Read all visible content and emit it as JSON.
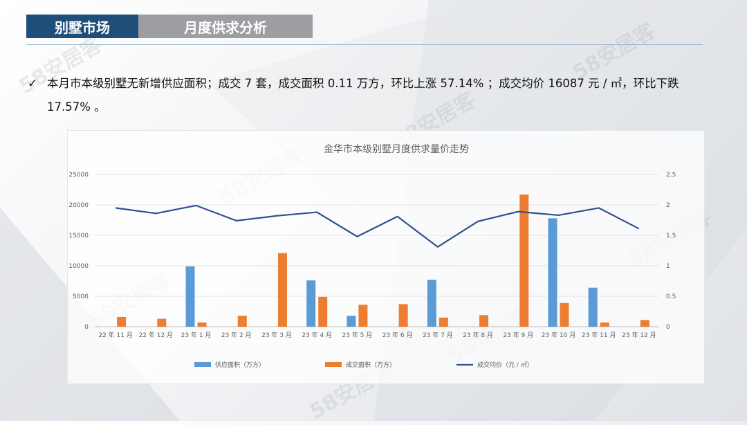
{
  "header": {
    "tab_active": "别墅市场",
    "tab_inactive": "月度供求分析"
  },
  "summary": {
    "check_icon": "check-icon",
    "text": "本月市本级别墅无新增供应面积；成交 7 套，成交面积 0.11 万方，环比上涨 57.14% ；成交均价 16087 元 / ㎡，环比下跌 17.57% 。"
  },
  "watermark": "58安居客",
  "chart_data": {
    "type": "bar",
    "title": "金华市本级别墅月度供求量价走势",
    "categories": [
      "22 年 11 月",
      "22 年 12 月",
      "23 年 1 月",
      "23 年 2 月",
      "23 年 3 月",
      "23 年 4 月",
      "23 年 5 月",
      "23 年 6 月",
      "23 年 7 月",
      "23 年 8 月",
      "23 年 9 月",
      "23 年 10 月",
      "23 年 11 月",
      "23 年 12 月"
    ],
    "left_axis": {
      "min": 0,
      "max": 25000,
      "ticks": [
        "0",
        "5000",
        "10000",
        "15000",
        "20000",
        "25000"
      ]
    },
    "right_axis": {
      "min": 0,
      "max": 2.5,
      "ticks": [
        "0",
        "0.5",
        "1",
        "1.5",
        "2",
        "2.5"
      ]
    },
    "series": [
      {
        "name": "供应面积（万方）",
        "type": "bar",
        "axis": "right",
        "color": "#5b9bd5",
        "values": [
          0,
          0,
          0.99,
          0,
          0,
          0.76,
          0.18,
          0,
          0.77,
          0,
          0,
          1.78,
          0.64,
          0
        ]
      },
      {
        "name": "成交面积（万方）",
        "type": "bar",
        "axis": "right",
        "color": "#ed7d31",
        "values": [
          0.16,
          0.13,
          0.07,
          0.18,
          1.21,
          0.49,
          0.36,
          0.37,
          0.15,
          0.19,
          2.17,
          0.39,
          0.07,
          0.11
        ]
      },
      {
        "name": "成交均价（元 / ㎡）",
        "type": "line",
        "axis": "left",
        "color": "#2f4f8f",
        "values": [
          19500,
          18600,
          19900,
          17400,
          18200,
          18800,
          14800,
          18100,
          13100,
          17300,
          18900,
          18300,
          19500,
          16087
        ]
      }
    ],
    "grid": true,
    "legend": "bottom"
  }
}
